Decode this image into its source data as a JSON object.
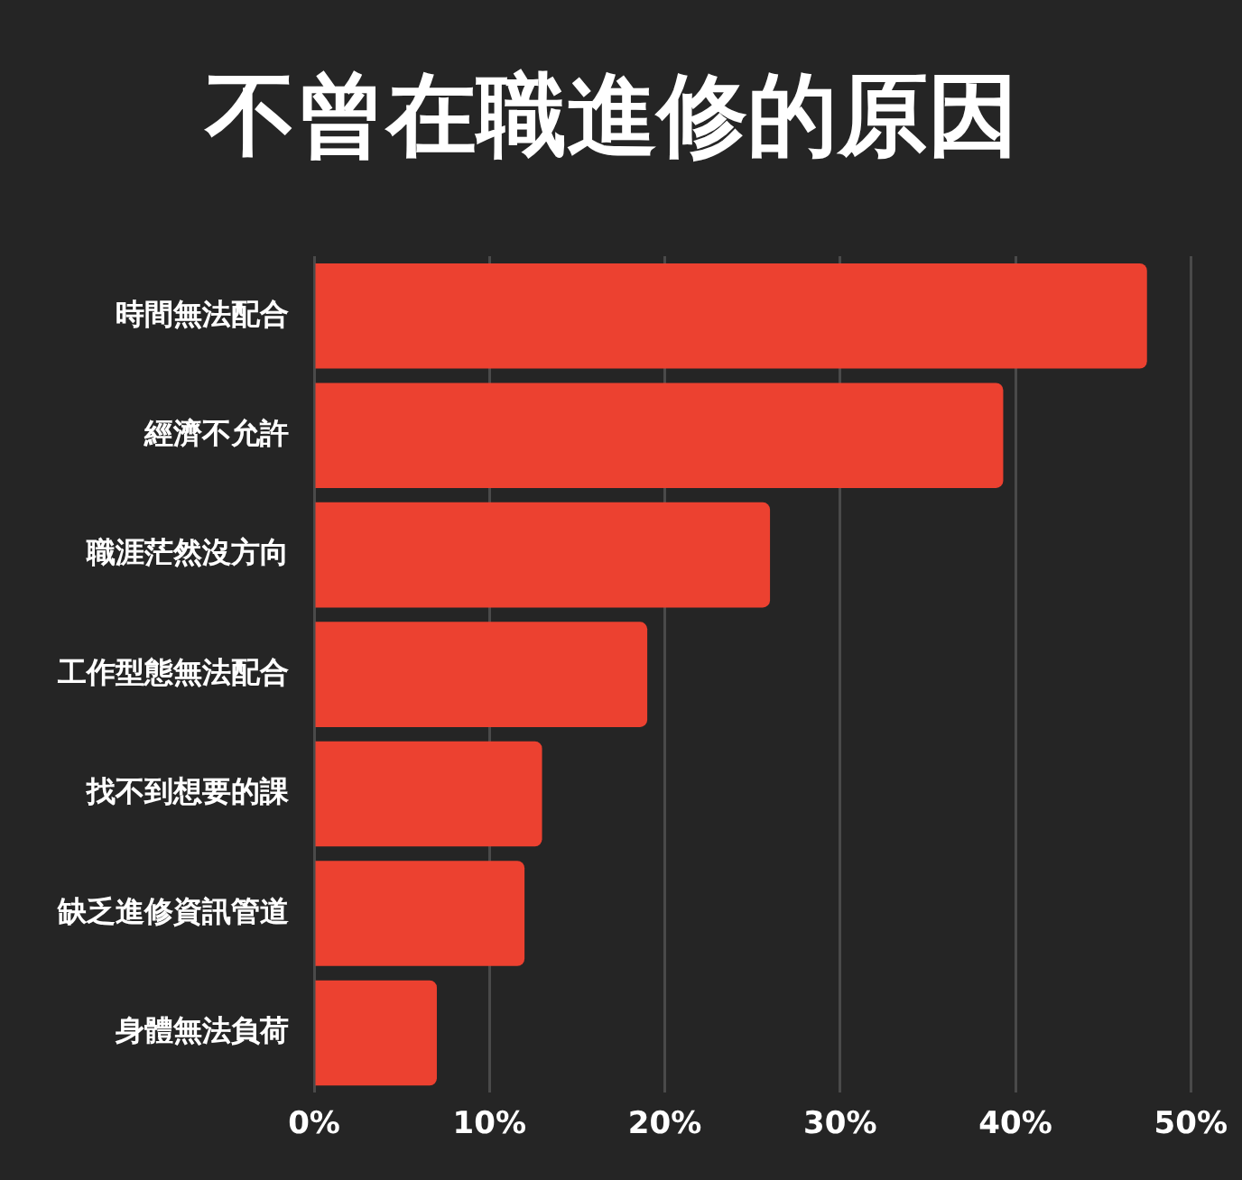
{
  "chart_data": {
    "type": "bar",
    "orientation": "horizontal",
    "title": "不曾在職進修的原因",
    "categories": [
      "時間無法配合",
      "經濟不允許",
      "職涯茫然沒方向",
      "工作型態無法配合",
      "找不到想要的課",
      "缺乏進修資訊管道",
      "身體無法負荷"
    ],
    "values": [
      47.5,
      39.3,
      26,
      19,
      13,
      12,
      7
    ],
    "color": "#ec4130",
    "xlim": [
      0,
      50
    ],
    "xticks": [
      {
        "value": 0,
        "label": "0%"
      },
      {
        "value": 10,
        "label": "10%"
      },
      {
        "value": 20,
        "label": "20%"
      },
      {
        "value": 30,
        "label": "30%"
      },
      {
        "value": 40,
        "label": "40%"
      },
      {
        "value": 50,
        "label": "50%"
      }
    ],
    "grid": "x",
    "legend": false
  }
}
